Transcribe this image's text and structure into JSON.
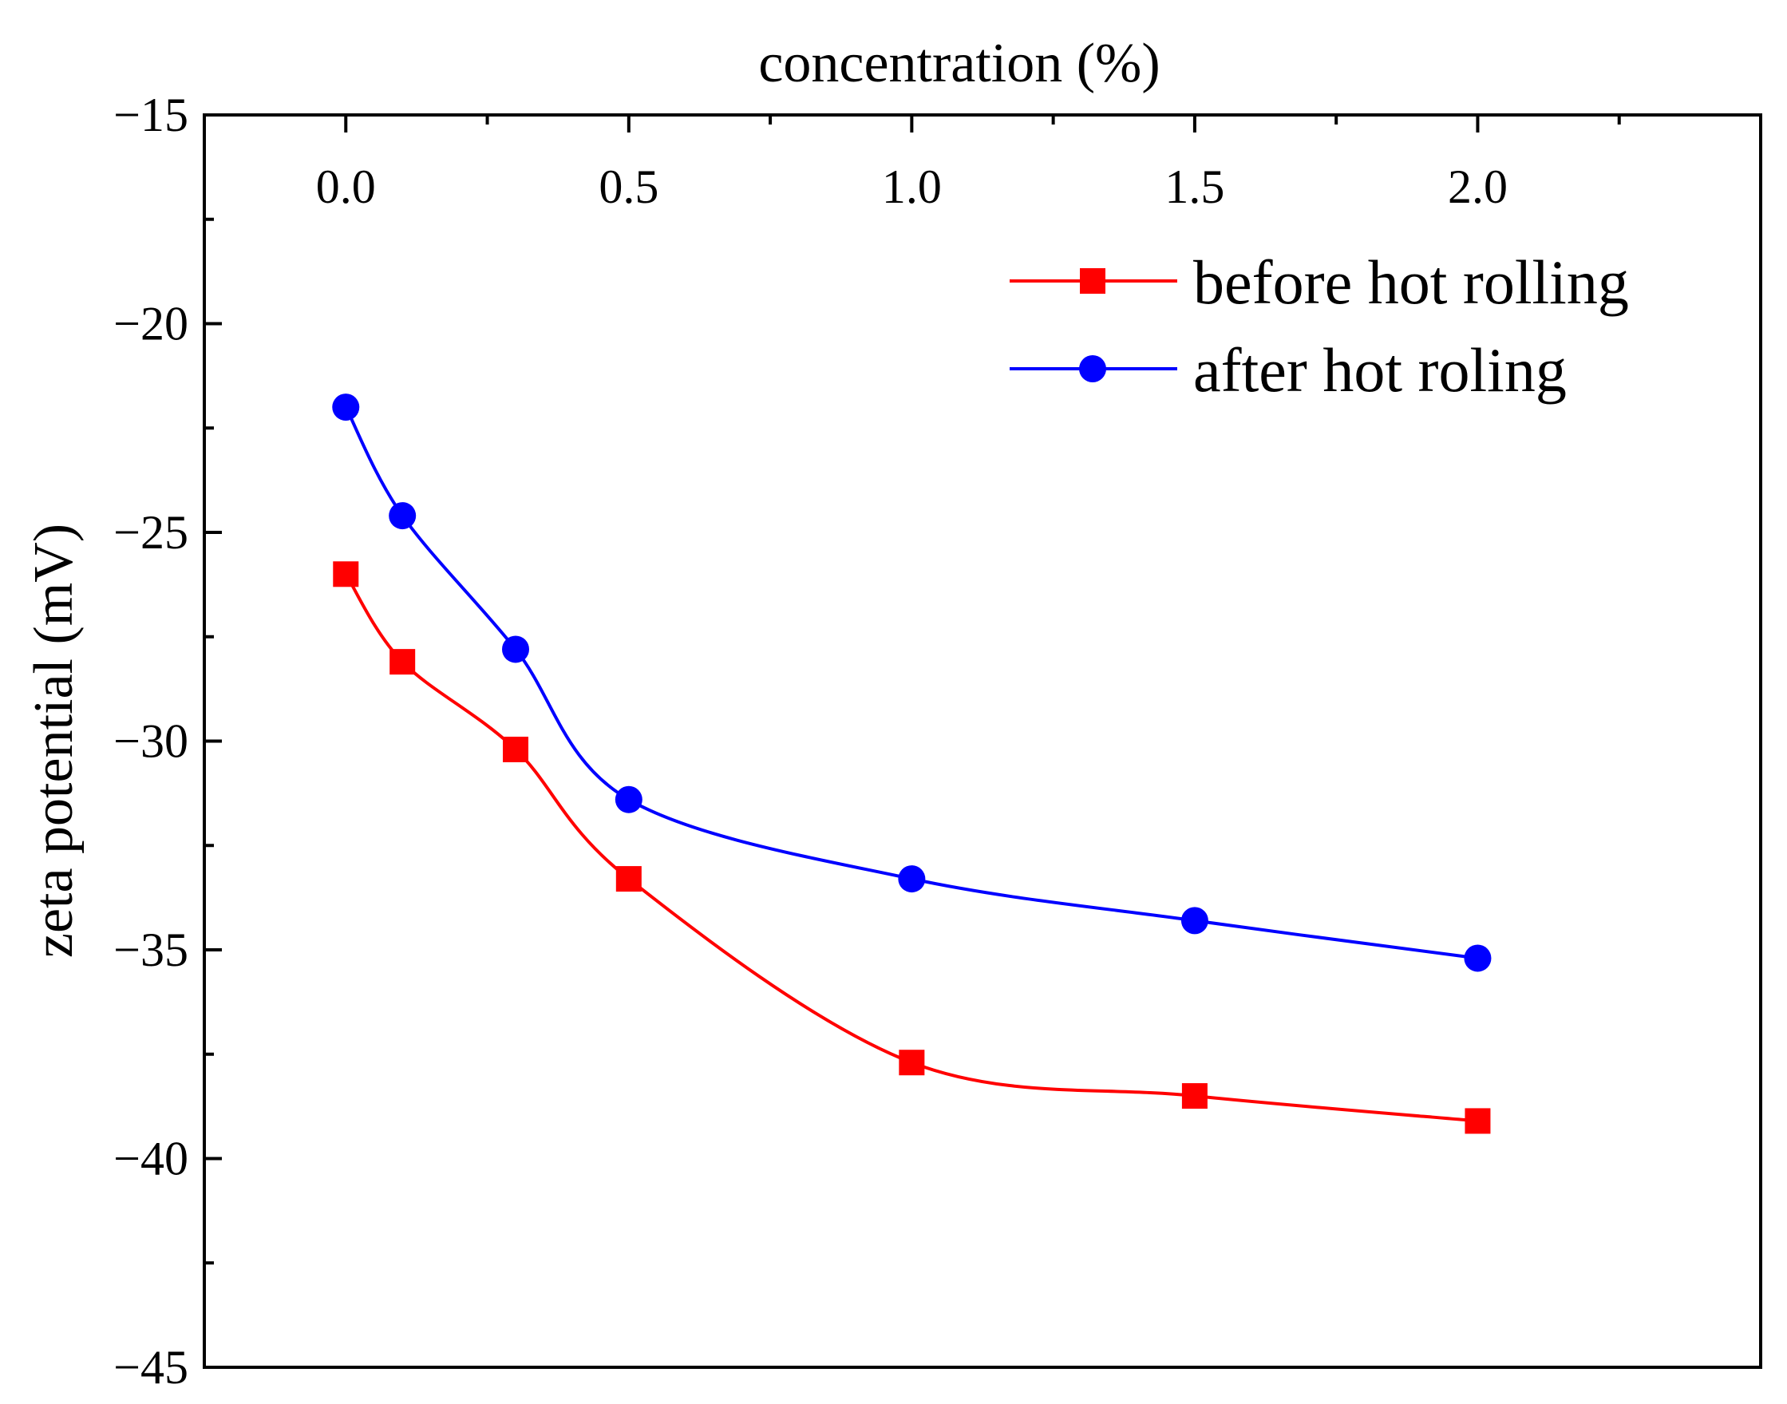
{
  "chart_data": {
    "type": "line",
    "title": "",
    "xlabel": "concentration (%)",
    "ylabel": "zeta potential (mV)",
    "xlim": [
      -0.25,
      2.5
    ],
    "ylim": [
      -45,
      -15
    ],
    "x_axis_position": "top",
    "grid": false,
    "legend_position": "top-right",
    "x_ticks": [
      0.0,
      0.5,
      1.0,
      1.5,
      2.0
    ],
    "x_tick_labels": [
      "0.0",
      "0.5",
      "1.0",
      "1.5",
      "2.0"
    ],
    "y_ticks": [
      -15,
      -20,
      -25,
      -30,
      -35,
      -40,
      -45
    ],
    "y_tick_labels": [
      "−15",
      "−20",
      "−25",
      "−30",
      "−35",
      "−40",
      "−45"
    ],
    "series": [
      {
        "name": "before hot rolling",
        "color": "#ff0000",
        "marker": "square",
        "x": [
          0.0,
          0.1,
          0.3,
          0.5,
          1.0,
          1.5,
          2.0
        ],
        "values": [
          -26.0,
          -28.1,
          -30.2,
          -33.3,
          -37.7,
          -38.5,
          -39.1
        ]
      },
      {
        "name": "after hot roling",
        "color": "#0000ff",
        "marker": "circle",
        "x": [
          0.0,
          0.1,
          0.3,
          0.5,
          1.0,
          1.5,
          2.0
        ],
        "values": [
          -22.0,
          -24.6,
          -27.8,
          -31.4,
          -33.3,
          -34.3,
          -35.2
        ]
      }
    ]
  }
}
